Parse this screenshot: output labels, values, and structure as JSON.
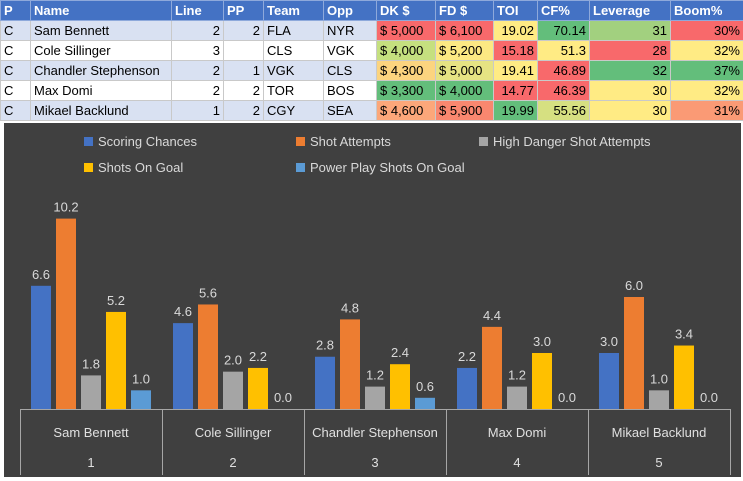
{
  "table": {
    "columns": [
      "P",
      "Name",
      "Line",
      "PP",
      "Team",
      "Opp",
      "DK $",
      "FD $",
      "TOI",
      "CF%",
      "Leverage",
      "Boom%"
    ],
    "rows": [
      {
        "P": "C",
        "Name": "Sam Bennett",
        "Line": "2",
        "PP": "2",
        "Team": "FLA",
        "Opp": "NYR",
        "DK": "$ 5,000",
        "FD": "$ 6,100",
        "TOI": "19.02",
        "CF": "70.14",
        "Leverage": "31",
        "Boom": "30%"
      },
      {
        "P": "C",
        "Name": "Cole Sillinger",
        "Line": "3",
        "PP": "",
        "Team": "CLS",
        "Opp": "VGK",
        "DK": "$ 4,000",
        "FD": "$ 5,200",
        "TOI": "15.18",
        "CF": "51.3",
        "Leverage": "28",
        "Boom": "32%"
      },
      {
        "P": "C",
        "Name": "Chandler Stephenson",
        "Line": "2",
        "PP": "1",
        "Team": "VGK",
        "Opp": "CLS",
        "DK": "$ 4,300",
        "FD": "$ 5,000",
        "TOI": "19.41",
        "CF": "46.89",
        "Leverage": "32",
        "Boom": "37%"
      },
      {
        "P": "C",
        "Name": "Max Domi",
        "Line": "2",
        "PP": "2",
        "Team": "TOR",
        "Opp": "BOS",
        "DK": "$ 3,300",
        "FD": "$ 4,000",
        "TOI": "14.77",
        "CF": "46.39",
        "Leverage": "30",
        "Boom": "32%"
      },
      {
        "P": "C",
        "Name": "Mikael Backlund",
        "Line": "1",
        "PP": "2",
        "Team": "CGY",
        "Opp": "SEA",
        "DK": "$ 4,600",
        "FD": "$ 5,900",
        "TOI": "19.99",
        "CF": "55.56",
        "Leverage": "30",
        "Boom": "31%"
      }
    ],
    "cell_colors": {
      "DK": [
        "#f8696b",
        "#c5e07f",
        "#fcd47f",
        "#63be7b",
        "#fca77a"
      ],
      "FD": [
        "#f8696b",
        "#fce983",
        "#e6e383",
        "#63be7b",
        "#f9876f"
      ],
      "TOI": [
        "#ffeb84",
        "#f8696b",
        "#ffeb84",
        "#f8696b",
        "#63be7b"
      ],
      "CF": [
        "#63be7b",
        "#ffeb84",
        "#f8696b",
        "#f8696b",
        "#d6e081"
      ],
      "Leverage": [
        "#a2d07f",
        "#f8696b",
        "#63be7b",
        "#ffeb84",
        "#ffeb84"
      ],
      "Boom": [
        "#f8696b",
        "#ffeb84",
        "#63be7b",
        "#ffeb84",
        "#fa9a75"
      ]
    }
  },
  "chart_data": {
    "type": "bar",
    "categories": [
      "Sam Bennett",
      "Cole Sillinger",
      "Chandler Stephenson",
      "Max Domi",
      "Mikael Backlund"
    ],
    "category_numbers": [
      "1",
      "2",
      "3",
      "4",
      "5"
    ],
    "series": [
      {
        "name": "Scoring Chances",
        "color": "#4472c4",
        "values": [
          6.6,
          4.6,
          2.8,
          2.2,
          3.0
        ]
      },
      {
        "name": "Shot Attempts",
        "color": "#ed7d31",
        "values": [
          10.2,
          5.6,
          4.8,
          4.4,
          6.0
        ]
      },
      {
        "name": "High Danger Shot Attempts",
        "color": "#a5a5a5",
        "values": [
          1.8,
          2.0,
          1.2,
          1.2,
          1.0
        ]
      },
      {
        "name": "Shots On Goal",
        "color": "#ffc000",
        "values": [
          5.2,
          2.2,
          2.4,
          3.0,
          3.4
        ]
      },
      {
        "name": "Power Play Shots On Goal",
        "color": "#5b9bd5",
        "values": [
          1.0,
          0.0,
          0.6,
          0.0,
          0.0
        ]
      }
    ],
    "labels": [
      [
        "6.6",
        "10.2",
        "1.8",
        "5.2",
        "1.0"
      ],
      [
        "4.6",
        "5.6",
        "2.0",
        "2.2",
        "0.0"
      ],
      [
        "2.8",
        "4.8",
        "1.2",
        "2.4",
        "0.6"
      ],
      [
        "2.2",
        "4.4",
        "1.2",
        "3.0",
        "0.0"
      ],
      [
        "3.0",
        "6.0",
        "1.0",
        "3.4",
        "0.0"
      ]
    ],
    "ylim": [
      0,
      12
    ],
    "grid": false,
    "legend": "top",
    "background": "#404040"
  }
}
